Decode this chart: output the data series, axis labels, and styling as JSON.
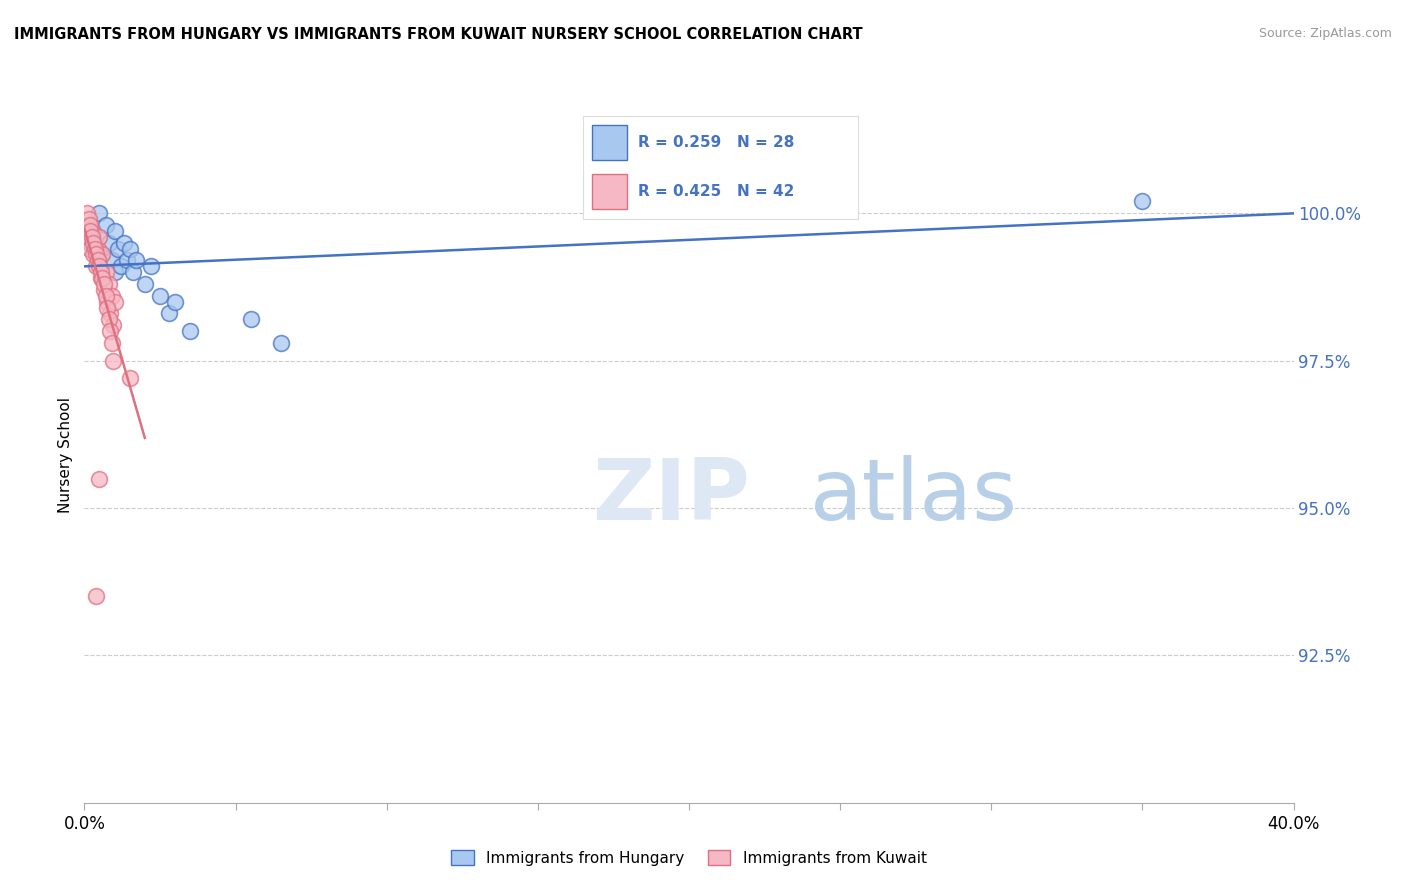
{
  "title": "IMMIGRANTS FROM HUNGARY VS IMMIGRANTS FROM KUWAIT NURSERY SCHOOL CORRELATION CHART",
  "source": "Source: ZipAtlas.com",
  "ylabel": "Nursery School",
  "legend_blue_label": "Immigrants from Hungary",
  "legend_pink_label": "Immigrants from Kuwait",
  "r_blue": 0.259,
  "n_blue": 28,
  "r_pink": 0.425,
  "n_pink": 42,
  "xmin": 0.0,
  "xmax": 40.0,
  "ymin": 90.0,
  "ymax": 101.8,
  "yticks": [
    92.5,
    95.0,
    97.5,
    100.0
  ],
  "ytick_labels": [
    "92.5%",
    "95.0%",
    "97.5%",
    "100.0%"
  ],
  "color_blue": "#a8c8f0",
  "color_pink": "#f5b8c4",
  "color_trend_blue": "#4472c4",
  "color_trend_pink": "#e07080",
  "background_color": "#ffffff",
  "blue_x": [
    0.2,
    0.3,
    0.4,
    0.5,
    0.5,
    0.6,
    0.7,
    0.8,
    0.9,
    1.0,
    1.0,
    1.1,
    1.2,
    1.3,
    1.4,
    1.5,
    1.6,
    1.7,
    2.0,
    2.2,
    2.5,
    2.8,
    3.0,
    3.5,
    5.5,
    6.5,
    25.0,
    35.0
  ],
  "blue_y": [
    99.5,
    99.7,
    99.4,
    99.6,
    100.0,
    99.3,
    99.8,
    99.5,
    99.2,
    99.0,
    99.7,
    99.4,
    99.1,
    99.5,
    99.2,
    99.4,
    99.0,
    99.2,
    98.8,
    99.1,
    98.6,
    98.3,
    98.5,
    98.0,
    98.2,
    97.8,
    100.1,
    100.2
  ],
  "pink_x": [
    0.1,
    0.15,
    0.2,
    0.25,
    0.3,
    0.35,
    0.4,
    0.45,
    0.5,
    0.5,
    0.55,
    0.6,
    0.65,
    0.7,
    0.75,
    0.8,
    0.85,
    0.9,
    0.95,
    1.0,
    0.1,
    0.15,
    0.2,
    0.2,
    0.25,
    0.3,
    0.35,
    0.4,
    0.45,
    0.5,
    0.55,
    0.6,
    0.65,
    0.7,
    0.75,
    0.8,
    0.85,
    0.9,
    0.95,
    1.5,
    0.5,
    0.4
  ],
  "pink_y": [
    99.8,
    99.6,
    99.4,
    99.7,
    99.3,
    99.5,
    99.1,
    99.4,
    99.2,
    99.6,
    98.9,
    99.3,
    98.7,
    99.0,
    98.5,
    98.8,
    98.3,
    98.6,
    98.1,
    98.5,
    100.0,
    99.9,
    99.8,
    99.7,
    99.6,
    99.5,
    99.4,
    99.3,
    99.2,
    99.1,
    99.0,
    98.9,
    98.8,
    98.6,
    98.4,
    98.2,
    98.0,
    97.8,
    97.5,
    97.2,
    95.5,
    93.5
  ]
}
